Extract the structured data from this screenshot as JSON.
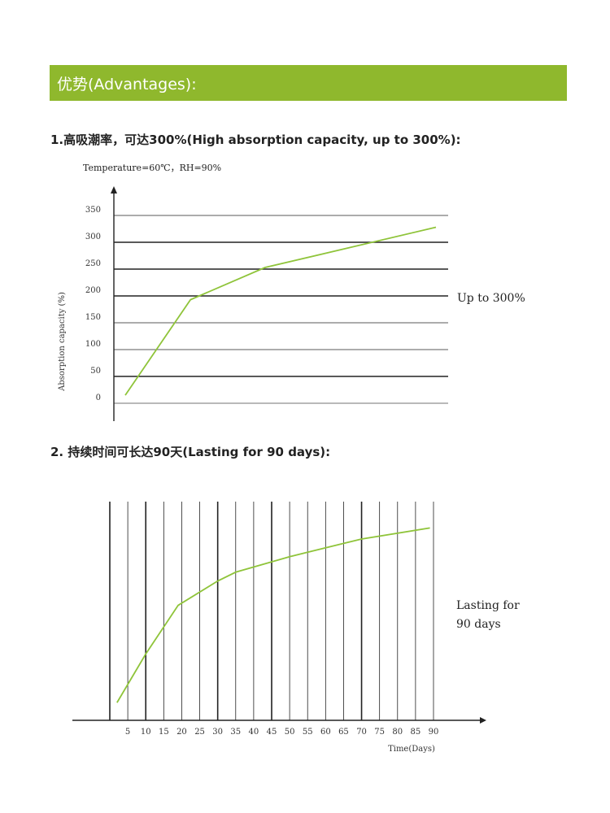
{
  "banner": {
    "title": "优势(Advantages):",
    "color": "#8fb82d"
  },
  "section1": {
    "heading": "1.高吸潮率，可达300%(High absorption capacity, up to 300%):",
    "condition": "Temperature=60℃，RH=90%",
    "callout": "Up to 300%"
  },
  "section2": {
    "heading": "2.  持续时间可长达90天(Lasting for 90 days):",
    "callout_line1": "Lasting for",
    "callout_line2": "90 days"
  },
  "chart_data": [
    {
      "type": "line",
      "title": "",
      "xlabel": "",
      "ylabel": "Absorption capacity (%)",
      "ylim": [
        0,
        350
      ],
      "yticks": [
        0,
        50,
        100,
        150,
        200,
        250,
        300,
        350
      ],
      "grid": true,
      "line_color": "#8fc43a",
      "series": [
        {
          "x": [
            0,
            21,
            45,
            100
          ],
          "y": [
            15,
            193,
            253,
            328
          ]
        }
      ]
    },
    {
      "type": "line",
      "title": "",
      "xlabel": "Time(Days)",
      "ylabel": "",
      "xlim": [
        0,
        90
      ],
      "xticks": [
        5,
        10,
        15,
        20,
        25,
        30,
        35,
        40,
        45,
        50,
        55,
        60,
        65,
        70,
        75,
        80,
        85,
        90
      ],
      "grid": true,
      "line_color": "#8fc43a",
      "series": [
        {
          "x": [
            2,
            10,
            19,
            30,
            35,
            50,
            65,
            70,
            89
          ],
          "y": [
            8,
            30,
            52,
            63,
            67,
            74,
            80,
            82,
            87
          ]
        }
      ]
    }
  ]
}
